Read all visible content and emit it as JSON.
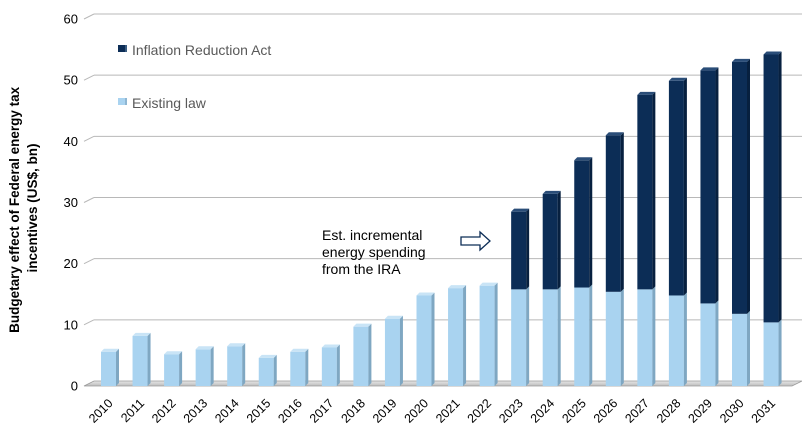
{
  "chart_data": {
    "type": "bar",
    "stacked": true,
    "categories": [
      "2010",
      "2011",
      "2012",
      "2013",
      "2014",
      "2015",
      "2016",
      "2017",
      "2018",
      "2019",
      "2020",
      "2021",
      "2022",
      "2023",
      "2024",
      "2025",
      "2026",
      "2027",
      "2028",
      "2029",
      "2030",
      "2031"
    ],
    "series": [
      {
        "name": "Existing law",
        "color": "#a9d3f0",
        "values": [
          5.6,
          8.2,
          5.2,
          6.0,
          6.5,
          4.6,
          5.6,
          6.3,
          9.7,
          11.0,
          14.8,
          16.0,
          16.4,
          15.8,
          15.8,
          16.1,
          15.4,
          15.8,
          14.8,
          13.5,
          11.8,
          10.4
        ]
      },
      {
        "name": "Inflation Reduction Act",
        "color": "#0c2d56",
        "values": [
          0,
          0,
          0,
          0,
          0,
          0,
          0,
          0,
          0,
          0,
          0,
          0,
          0,
          12.7,
          15.6,
          20.8,
          25.6,
          31.8,
          35.1,
          38.1,
          41.2,
          43.8
        ]
      }
    ],
    "legend_order": [
      "Inflation Reduction Act",
      "Existing law"
    ],
    "legend_position": "top-left",
    "ylabel_lines": [
      "Budgetary effect of Federal energy tax",
      "incentives (US$, bn)"
    ],
    "xlabel": "",
    "ylim": [
      0,
      60
    ],
    "yticks": [
      0,
      10,
      20,
      30,
      40,
      50,
      60
    ],
    "grid": "horizontal",
    "annotation": {
      "lines": [
        "Est. incremental",
        "energy spending",
        "from the IRA"
      ],
      "icon": "right-arrow-outline-icon"
    }
  }
}
